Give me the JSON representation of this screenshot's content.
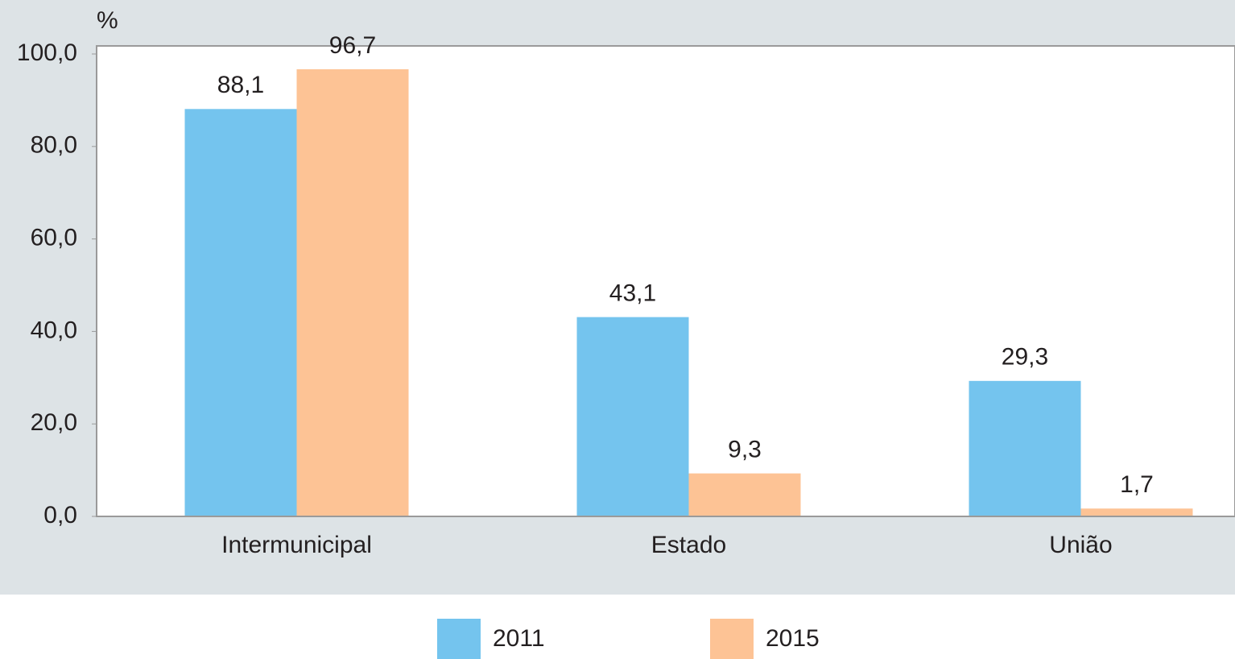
{
  "chart_data": {
    "type": "bar",
    "y_label": "%",
    "categories": [
      "Intermunicipal",
      "Estado",
      "União"
    ],
    "series": [
      {
        "name": "2011",
        "color": "#74c4ee",
        "values": [
          88.1,
          43.1,
          29.3
        ],
        "value_labels": [
          "88,1",
          "43,1",
          "29,3"
        ]
      },
      {
        "name": "2015",
        "color": "#fdc395",
        "values": [
          96.7,
          9.3,
          1.7
        ],
        "value_labels": [
          "96,7",
          "9,3",
          "1,7"
        ]
      }
    ],
    "ylim": [
      0,
      100
    ],
    "yticks": [
      {
        "value": 0,
        "label": "0,0"
      },
      {
        "value": 20,
        "label": "20,0"
      },
      {
        "value": 40,
        "label": "40,0"
      },
      {
        "value": 60,
        "label": "60,0"
      },
      {
        "value": 80,
        "label": "80,0"
      },
      {
        "value": 100,
        "label": "100,0"
      }
    ],
    "legend": "bottom"
  }
}
